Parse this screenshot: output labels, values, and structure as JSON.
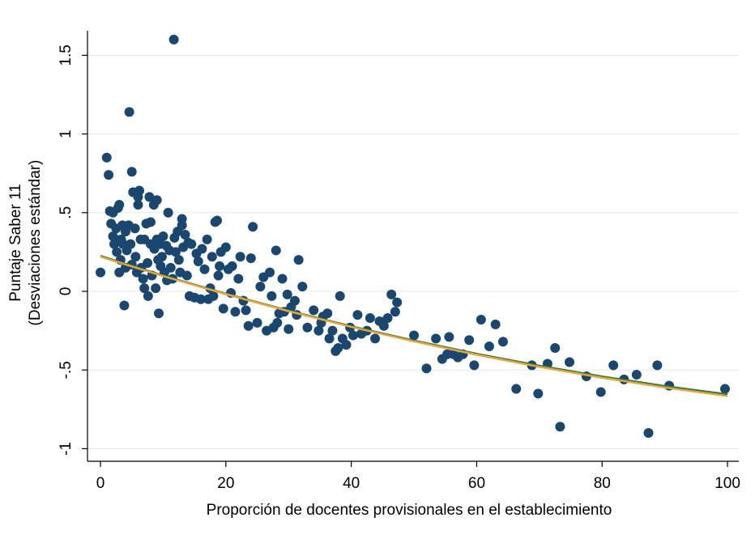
{
  "chart_data": {
    "type": "scatter",
    "xlabel": "Proporción de docentes provisionales en el establecimiento",
    "ylabel": [
      "Puntaje Saber 11",
      "(Desviaciones estándar)"
    ],
    "xlim": [
      -2.07,
      101.8
    ],
    "ylim": [
      -1.08,
      1.656
    ],
    "xticks": [
      0,
      20,
      40,
      60,
      80,
      100
    ],
    "yticks": [
      -1,
      {
        "value": -0.5,
        "label": "-.5"
      },
      0,
      {
        "value": 0.5,
        "label": ".5"
      },
      1,
      1.5
    ],
    "grid": true,
    "series": [
      {
        "type": "scatter",
        "color": "#1a476f",
        "x": [
          0,
          1,
          1.3,
          1.5,
          1.7,
          2,
          2,
          2.2,
          2.5,
          2.6,
          2.8,
          3,
          3,
          3.2,
          3.3,
          3.5,
          3.6,
          3.8,
          4,
          4,
          4.2,
          4.5,
          4.6,
          4.8,
          5,
          5,
          5.2,
          5.5,
          5.6,
          5.8,
          6,
          6,
          6.2,
          6.4,
          6.5,
          6.8,
          7,
          7,
          7.3,
          7.5,
          7.6,
          7.8,
          8,
          8,
          8.2,
          8.5,
          8.6,
          8.8,
          9,
          9,
          9.2,
          9.3,
          9.5,
          9.6,
          9.8,
          10,
          10.2,
          10.5,
          10.6,
          10.8,
          11,
          11.2,
          11.5,
          11.7,
          11.8,
          12,
          12.3,
          12.5,
          12.7,
          13,
          13,
          13.2,
          13.5,
          13.8,
          14,
          14.2,
          14.5,
          15,
          15.3,
          15.6,
          16,
          16.2,
          16.6,
          17,
          17.2,
          17.5,
          17.8,
          18,
          18.3,
          18.6,
          18.8,
          19,
          19.2,
          19.6,
          20,
          20.4,
          20.8,
          21,
          21.5,
          22,
          22.3,
          22.8,
          23.2,
          23.6,
          24,
          24.3,
          25,
          25.5,
          26,
          26.5,
          27,
          27.3,
          27.6,
          28,
          28.2,
          28.5,
          29,
          29.3,
          29.8,
          30,
          30.4,
          31,
          31.3,
          31.6,
          32.2,
          33,
          34,
          34.8,
          35.2,
          35.5,
          36.2,
          36.5,
          37,
          37.5,
          37.9,
          38.2,
          38.6,
          39.2,
          39.8,
          40.3,
          41,
          41.6,
          42.5,
          43,
          43.8,
          44.5,
          45.2,
          45.8,
          46.4,
          47,
          47.3,
          50,
          52,
          53.5,
          54.5,
          55.3,
          55.6,
          56.3,
          57,
          57.8,
          58.8,
          59.6,
          60.7,
          62,
          63,
          64.2,
          66.3,
          68.8,
          69.8,
          71.3,
          72.5,
          73.3,
          74.8,
          77.5,
          79.8,
          81.8,
          83.5,
          85.5,
          87.4,
          88.8,
          90.7,
          99.6
        ],
        "values": [
          0.12,
          0.85,
          0.74,
          0.51,
          0.43,
          0.5,
          0.35,
          0.3,
          0.4,
          0.25,
          0.53,
          0.55,
          0.12,
          0.2,
          0.33,
          0.42,
          0.3,
          -0.09,
          0.15,
          0.38,
          0.26,
          0.42,
          1.14,
          0.3,
          0.76,
          0.17,
          0.63,
          0.4,
          0.22,
          0.12,
          0.55,
          0.6,
          0.64,
          0.33,
          0.15,
          0.08,
          0.33,
          0.02,
          0.43,
          0.18,
          -0.03,
          0.6,
          0.44,
          0.3,
          0.1,
          0.55,
          0.27,
          0.02,
          0.33,
          0.58,
          0.2,
          -0.14,
          0.3,
          0.16,
          0.22,
          0.35,
          0.12,
          0.29,
          0.07,
          0.5,
          0.26,
          0.15,
          0.08,
          1.6,
          0.34,
          0.25,
          0.38,
          0.2,
          0.12,
          0.42,
          0.46,
          0.28,
          0.36,
          0.1,
          0.31,
          -0.03,
          0.3,
          -0.04,
          0.24,
          0.19,
          -0.05,
          0.27,
          0.14,
          0.33,
          -0.05,
          0.02,
          0.22,
          -0.03,
          0.44,
          0.45,
          0.1,
          0.16,
          0.25,
          -0.11,
          0.28,
          0.14,
          -0.01,
          0.16,
          -0.13,
          0.08,
          0.22,
          -0.06,
          -0.12,
          -0.22,
          0.21,
          0.41,
          -0.2,
          0.03,
          0.09,
          -0.25,
          0.12,
          -0.03,
          -0.23,
          0.26,
          -0.2,
          -0.14,
          0.08,
          -0.13,
          -0.02,
          -0.24,
          -0.1,
          -0.06,
          -0.15,
          0.2,
          0.03,
          -0.23,
          -0.12,
          -0.25,
          -0.2,
          -0.16,
          -0.14,
          -0.3,
          -0.25,
          -0.38,
          -0.36,
          -0.03,
          -0.3,
          -0.34,
          -0.23,
          -0.28,
          -0.15,
          -0.27,
          -0.25,
          -0.17,
          -0.3,
          -0.19,
          -0.22,
          -0.17,
          -0.02,
          -0.13,
          -0.07,
          -0.28,
          -0.49,
          -0.3,
          -0.43,
          -0.4,
          -0.29,
          -0.4,
          -0.42,
          -0.4,
          -0.31,
          -0.47,
          -0.18,
          -0.35,
          -0.21,
          -0.32,
          -0.62,
          -0.47,
          -0.65,
          -0.46,
          -0.36,
          -0.86,
          -0.45,
          -0.54,
          -0.64,
          -0.47,
          -0.56,
          -0.53,
          -0.9,
          -0.47,
          -0.6,
          -0.62
        ]
      },
      {
        "type": "line",
        "color": "#2e7d32",
        "x": [
          0,
          10,
          20,
          30,
          40,
          50,
          60,
          70,
          80,
          90,
          100
        ],
        "values": [
          0.225,
          0.1,
          -0.015,
          -0.123,
          -0.222,
          -0.313,
          -0.397,
          -0.473,
          -0.541,
          -0.602,
          -0.655
        ]
      },
      {
        "type": "line",
        "color": "#e8a33d",
        "x": [
          0,
          10,
          20,
          30,
          40,
          50,
          60,
          70,
          80,
          90,
          100
        ],
        "values": [
          0.22,
          0.097,
          -0.018,
          -0.126,
          -0.226,
          -0.318,
          -0.403,
          -0.48,
          -0.549,
          -0.611,
          -0.665
        ]
      }
    ]
  }
}
